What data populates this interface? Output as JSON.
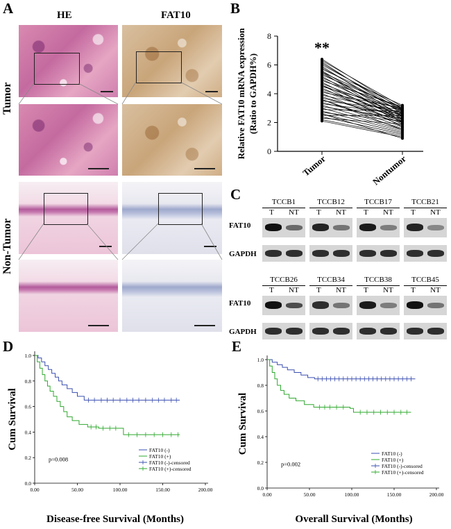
{
  "panel_labels": {
    "a": "A",
    "b": "B",
    "c": "C",
    "d": "D",
    "e": "E"
  },
  "panel_a": {
    "col_he": "HE",
    "col_fat10": "FAT10",
    "row_tumor": "Tumor",
    "row_nontumor": "Non-Tumor"
  },
  "chart_data": [
    {
      "id": "panel_b",
      "type": "line",
      "ylabel_line1": "Relative FAT10 mRNA expression",
      "ylabel_line2": "(Ratio to GAPDH%)",
      "categories": [
        "Tumor",
        "Nontumor"
      ],
      "ylim": [
        0,
        8
      ],
      "yticks": [
        "0",
        "2",
        "4",
        "6",
        "8"
      ],
      "annotation": "**",
      "pairs": [
        [
          6.4,
          2.9
        ],
        [
          6.3,
          3.1
        ],
        [
          6.2,
          2.6
        ],
        [
          6.1,
          2.8
        ],
        [
          6.0,
          3.0
        ],
        [
          5.9,
          2.4
        ],
        [
          5.8,
          2.7
        ],
        [
          5.7,
          3.2
        ],
        [
          5.6,
          2.2
        ],
        [
          5.5,
          2.9
        ],
        [
          5.4,
          2.5
        ],
        [
          5.3,
          3.0
        ],
        [
          5.2,
          2.1
        ],
        [
          5.1,
          2.8
        ],
        [
          5.0,
          2.4
        ],
        [
          4.9,
          3.1
        ],
        [
          4.8,
          2.0
        ],
        [
          4.7,
          2.6
        ],
        [
          4.6,
          2.3
        ],
        [
          4.5,
          2.9
        ],
        [
          4.4,
          1.9
        ],
        [
          4.3,
          2.5
        ],
        [
          4.2,
          2.2
        ],
        [
          4.1,
          3.0
        ],
        [
          4.0,
          1.8
        ],
        [
          3.9,
          2.7
        ],
        [
          3.8,
          2.1
        ],
        [
          3.7,
          2.4
        ],
        [
          3.6,
          1.7
        ],
        [
          3.5,
          2.9
        ],
        [
          3.4,
          2.0
        ],
        [
          3.3,
          2.6
        ],
        [
          3.2,
          1.6
        ],
        [
          3.1,
          2.3
        ],
        [
          3.0,
          1.5
        ],
        [
          2.9,
          2.8
        ],
        [
          2.8,
          1.4
        ],
        [
          2.7,
          2.1
        ],
        [
          2.6,
          1.3
        ],
        [
          2.5,
          2.5
        ],
        [
          2.4,
          1.2
        ],
        [
          2.3,
          1.9
        ],
        [
          2.2,
          1.1
        ],
        [
          2.1,
          1.0
        ],
        [
          2.6,
          0.9
        ],
        [
          3.6,
          1.5
        ],
        [
          4.6,
          1.7
        ],
        [
          5.5,
          2.0
        ]
      ]
    },
    {
      "id": "panel_d",
      "type": "line",
      "xlabel": "Disease-free Survival (Months)",
      "ylabel": "Cum Survival",
      "xlim": [
        0,
        200
      ],
      "ylim": [
        0,
        1.0
      ],
      "xticks": [
        "0.00",
        "50.00",
        "100.00",
        "150.00",
        "200.00"
      ],
      "yticks": [
        "0.0",
        "0.2",
        "0.4",
        "0.6",
        "0.8",
        "1.0"
      ],
      "pvalue": "p=0.008",
      "legend": [
        "FAT10 (-)",
        "FAT10 (+)",
        "FAT10 (-)-censored",
        "FAT10 (+)-censored"
      ],
      "series": [
        {
          "name": "FAT10 (-)",
          "color": "#3a4fb0",
          "points": [
            [
              0,
              1.0
            ],
            [
              4,
              0.98
            ],
            [
              8,
              0.95
            ],
            [
              12,
              0.92
            ],
            [
              16,
              0.89
            ],
            [
              20,
              0.86
            ],
            [
              24,
              0.83
            ],
            [
              28,
              0.8
            ],
            [
              32,
              0.77
            ],
            [
              38,
              0.74
            ],
            [
              44,
              0.71
            ],
            [
              50,
              0.68
            ],
            [
              58,
              0.65
            ],
            [
              170,
              0.65
            ]
          ],
          "censored": [
            63,
            70,
            78,
            85,
            92,
            100,
            108,
            115,
            122,
            130,
            138,
            145,
            152,
            160,
            166
          ]
        },
        {
          "name": "FAT10 (+)",
          "color": "#2ea82e",
          "points": [
            [
              0,
              1.0
            ],
            [
              3,
              0.95
            ],
            [
              6,
              0.9
            ],
            [
              9,
              0.85
            ],
            [
              12,
              0.8
            ],
            [
              15,
              0.76
            ],
            [
              18,
              0.72
            ],
            [
              22,
              0.68
            ],
            [
              26,
              0.64
            ],
            [
              30,
              0.6
            ],
            [
              34,
              0.56
            ],
            [
              38,
              0.52
            ],
            [
              44,
              0.49
            ],
            [
              52,
              0.46
            ],
            [
              62,
              0.44
            ],
            [
              75,
              0.43
            ],
            [
              102,
              0.43
            ],
            [
              104,
              0.38
            ],
            [
              170,
              0.38
            ]
          ],
          "censored": [
            66,
            72,
            80,
            88,
            95,
            110,
            120,
            130,
            140,
            150,
            160,
            168
          ]
        }
      ]
    },
    {
      "id": "panel_e",
      "type": "line",
      "xlabel": "Overall Survival (Months)",
      "ylabel": "Cum Survival",
      "xlim": [
        0,
        200
      ],
      "ylim": [
        0,
        1.0
      ],
      "xticks": [
        "0.00",
        "50.00",
        "100.00",
        "150.00",
        "200.00"
      ],
      "yticks": [
        "0.0",
        "0.2",
        "0.4",
        "0.6",
        "0.8",
        "1.0"
      ],
      "pvalue": "p=0.002",
      "legend": [
        "FAT10 (-)",
        "FAT10 (+)",
        "FAT10 (-)-censored",
        "FAT10 (+)-censored"
      ],
      "series": [
        {
          "name": "FAT10 (-)",
          "color": "#3a4fb0",
          "points": [
            [
              0,
              1.0
            ],
            [
              6,
              0.98
            ],
            [
              12,
              0.96
            ],
            [
              18,
              0.94
            ],
            [
              24,
              0.92
            ],
            [
              32,
              0.9
            ],
            [
              40,
              0.88
            ],
            [
              48,
              0.86
            ],
            [
              56,
              0.85
            ],
            [
              175,
              0.85
            ]
          ],
          "censored": [
            60,
            65,
            70,
            75,
            80,
            85,
            90,
            95,
            100,
            105,
            110,
            115,
            120,
            125,
            130,
            135,
            140,
            145,
            150,
            155,
            160,
            165,
            170
          ]
        },
        {
          "name": "FAT10 (+)",
          "color": "#2ea82e",
          "points": [
            [
              0,
              1.0
            ],
            [
              3,
              0.95
            ],
            [
              6,
              0.9
            ],
            [
              9,
              0.85
            ],
            [
              12,
              0.8
            ],
            [
              16,
              0.76
            ],
            [
              20,
              0.73
            ],
            [
              26,
              0.7
            ],
            [
              34,
              0.68
            ],
            [
              44,
              0.65
            ],
            [
              55,
              0.63
            ],
            [
              80,
              0.63
            ],
            [
              98,
              0.62
            ],
            [
              102,
              0.59
            ],
            [
              170,
              0.59
            ]
          ],
          "censored": [
            62,
            68,
            74,
            82,
            90,
            110,
            118,
            126,
            134,
            142,
            150,
            158,
            165
          ]
        }
      ]
    }
  ],
  "panel_c": {
    "groups": [
      {
        "name": "TCCB1"
      },
      {
        "name": "TCCB12"
      },
      {
        "name": "TCCB17"
      },
      {
        "name": "TCCB21"
      },
      {
        "name": "TCCB26"
      },
      {
        "name": "TCCB34"
      },
      {
        "name": "TCCB38"
      },
      {
        "name": "TCCB45"
      }
    ],
    "lane_t": "T",
    "lane_nt": "NT",
    "row_fat10": "FAT10",
    "row_gapdh": "GAPDH",
    "fat10_levels": [
      [
        1.0,
        0.55
      ],
      [
        0.9,
        0.5
      ],
      [
        0.95,
        0.45
      ],
      [
        0.9,
        0.4
      ],
      [
        1.0,
        0.7
      ],
      [
        0.85,
        0.5
      ],
      [
        0.95,
        0.45
      ],
      [
        1.0,
        0.5
      ]
    ]
  }
}
